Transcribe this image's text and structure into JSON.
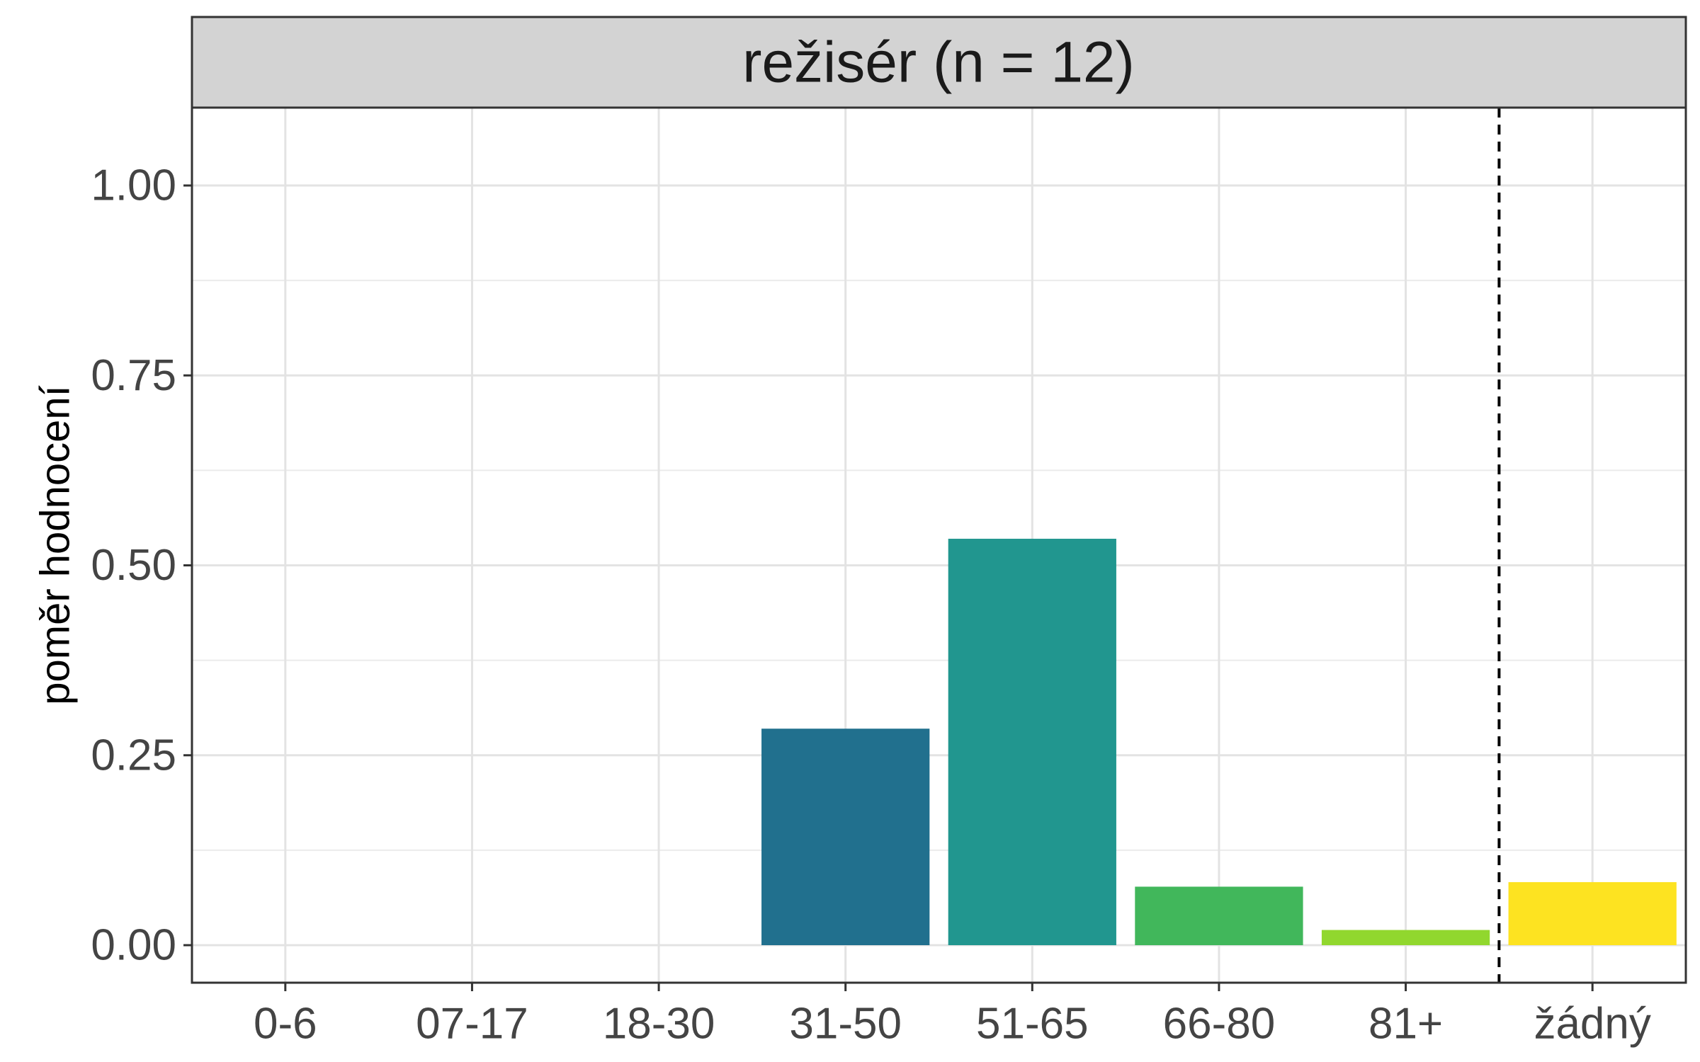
{
  "chart_data": {
    "type": "bar",
    "title": "režisér (n = 12)",
    "xlabel": "",
    "ylabel": "poměr hodnocení",
    "categories": [
      "0-6",
      "07-17",
      "18-30",
      "31-50",
      "51-65",
      "66-80",
      "81+",
      "žádný"
    ],
    "values": [
      0,
      0,
      0,
      0.285,
      0.535,
      0.077,
      0.02,
      0.083
    ],
    "colors": [
      "#440154",
      "#46337e",
      "#365c8d",
      "#21708e",
      "#21968f",
      "#41b75b",
      "#91d72e",
      "#fde321"
    ],
    "ylim": [
      -0.05,
      1.1
    ],
    "yticks": [
      0.0,
      0.25,
      0.5,
      0.75,
      1.0
    ],
    "ytick_labels": [
      "0.00",
      "0.25",
      "0.50",
      "0.75",
      "1.00"
    ],
    "grid": true,
    "reference_line": {
      "between_categories": [
        "81+",
        "žádný"
      ],
      "style": "dashed"
    }
  }
}
